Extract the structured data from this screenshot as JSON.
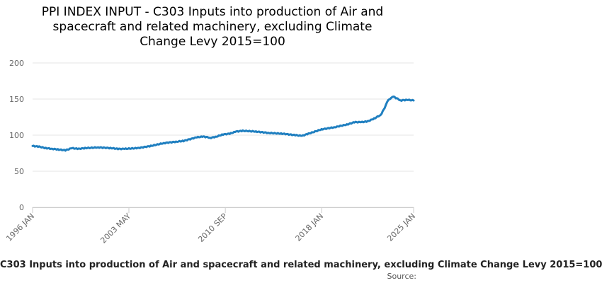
{
  "colors": {
    "series": "#1f7fc0",
    "grid": "#e6e6e6",
    "axis_text": "#666666"
  },
  "chart_data": {
    "type": "line",
    "title": "PPI INDEX INPUT - C303 Inputs into production of Air and\nspacecraft and related machinery, excluding Climate\nChange Levy 2015=100",
    "xlabel": "C303 Inputs into production of Air and spacecraft and related machinery, excluding Climate Change Levy 2015=100",
    "ylabel": "",
    "credits": "Source:",
    "xlim": [
      1996.0,
      2025.0
    ],
    "ylim": [
      0,
      200
    ],
    "yticks": [
      0,
      50,
      100,
      150,
      200
    ],
    "xticks": [
      {
        "label": "1996 JAN",
        "x": 1996.0
      },
      {
        "label": "2003 MAY",
        "x": 2003.33
      },
      {
        "label": "2010 SEP",
        "x": 2010.67
      },
      {
        "label": "2018 JAN",
        "x": 2018.0
      },
      {
        "label": "2025 JAN",
        "x": 2025.0
      }
    ],
    "grid": true,
    "legend": "none",
    "series": [
      {
        "name": "C303 Inputs into production of Air and spacecraft and related machinery, excluding Climate Change Levy 2015=100",
        "x": [
          1996.0,
          1996.5,
          1997.0,
          1997.5,
          1998.0,
          1998.5,
          1999.0,
          1999.5,
          2000.0,
          2001.0,
          2002.0,
          2002.5,
          2003.0,
          2004.0,
          2005.0,
          2006.0,
          2007.0,
          2007.5,
          2008.5,
          2009.0,
          2009.3,
          2009.5,
          2010.0,
          2010.5,
          2011.0,
          2011.5,
          2012.0,
          2013.0,
          2014.0,
          2015.0,
          2016.0,
          2016.5,
          2017.0,
          2018.0,
          2019.0,
          2020.0,
          2020.5,
          2021.0,
          2021.5,
          2022.0,
          2022.5,
          2022.8,
          2023.0,
          2023.3,
          2023.5,
          2023.8,
          2024.0,
          2024.5,
          2025.0
        ],
        "values": [
          85,
          84,
          82,
          81,
          80,
          79,
          82,
          81,
          82,
          83,
          82,
          81,
          81,
          82,
          85,
          89,
          91,
          92,
          97,
          98,
          97,
          96,
          98,
          101,
          102,
          105,
          106,
          105,
          103,
          102,
          100,
          99,
          102,
          108,
          111,
          115,
          118,
          118,
          119,
          123,
          128,
          138,
          147,
          152,
          153,
          150,
          148,
          149,
          148
        ]
      }
    ]
  }
}
